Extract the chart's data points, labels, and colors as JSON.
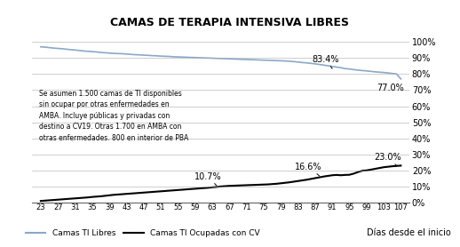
{
  "title": "CAMAS DE TERAPIA INTENSIVA LIBRES",
  "xlabel": "Días desde el inicio",
  "xticks": [
    23,
    27,
    31,
    35,
    39,
    43,
    47,
    51,
    55,
    59,
    63,
    67,
    71,
    75,
    79,
    83,
    87,
    91,
    95,
    99,
    103,
    107
  ],
  "ytick_labels_right": [
    "0%",
    "10%",
    "20%",
    "30%",
    "40%",
    "50%",
    "60%",
    "70%",
    "80%",
    "90%",
    "100%"
  ],
  "annotation_text": "Se asumen 1.500 camas de TI disponibles\nsin ocupar por otras enfermedades en\nAMBA. Incluye públicas y privadas con\ndestino a CV19. Otras 1.700 en AMBA con\notras enfermedades. 800 en interior de PBA",
  "legend_free": "Camas TI Libres",
  "legend_occ": "Camas TI Ocupadas con CV",
  "color_free": "#8aa8c8",
  "color_occ": "#000000",
  "background_color": "#ffffff",
  "days": [
    23,
    24,
    25,
    26,
    27,
    28,
    29,
    30,
    31,
    32,
    33,
    34,
    35,
    36,
    37,
    38,
    39,
    40,
    41,
    42,
    43,
    44,
    45,
    46,
    47,
    48,
    49,
    50,
    51,
    52,
    53,
    54,
    55,
    56,
    57,
    58,
    59,
    60,
    61,
    62,
    63,
    64,
    65,
    66,
    67,
    68,
    69,
    70,
    71,
    72,
    73,
    74,
    75,
    76,
    77,
    78,
    79,
    80,
    81,
    82,
    83,
    84,
    85,
    86,
    87,
    88,
    89,
    90,
    91,
    92,
    93,
    94,
    95,
    96,
    97,
    98,
    99,
    100,
    101,
    102,
    103,
    104,
    105,
    106,
    107
  ],
  "libres": [
    97,
    96.8,
    96.5,
    96.2,
    96.0,
    95.8,
    95.5,
    95.2,
    95.0,
    94.7,
    94.4,
    94.2,
    94.0,
    93.8,
    93.5,
    93.3,
    93.1,
    92.9,
    92.8,
    92.7,
    92.5,
    92.3,
    92.1,
    92.0,
    91.8,
    91.7,
    91.5,
    91.4,
    91.2,
    91.1,
    91.0,
    90.8,
    90.7,
    90.6,
    90.5,
    90.4,
    90.3,
    90.2,
    90.1,
    90.0,
    89.9,
    89.8,
    89.7,
    89.6,
    89.5,
    89.4,
    89.3,
    89.2,
    89.1,
    89.0,
    88.9,
    88.8,
    88.7,
    88.6,
    88.5,
    88.4,
    88.3,
    88.2,
    88.0,
    87.8,
    87.5,
    87.2,
    87.0,
    86.7,
    86.4,
    86.0,
    85.6,
    85.2,
    84.8,
    84.4,
    84.0,
    83.4,
    83.2,
    82.8,
    82.5,
    82.2,
    82.0,
    81.7,
    81.4,
    81.2,
    81.0,
    80.7,
    80.4,
    80.1,
    77.0
  ],
  "ocupadas": [
    1.0,
    1.2,
    1.4,
    1.6,
    1.8,
    2.0,
    2.2,
    2.4,
    2.6,
    2.8,
    3.0,
    3.2,
    3.5,
    3.7,
    3.9,
    4.2,
    4.5,
    4.8,
    5.0,
    5.2,
    5.4,
    5.6,
    5.8,
    6.0,
    6.2,
    6.4,
    6.6,
    6.8,
    7.0,
    7.2,
    7.4,
    7.6,
    7.8,
    8.0,
    8.2,
    8.4,
    8.6,
    8.8,
    9.0,
    9.2,
    9.5,
    9.7,
    10.0,
    10.2,
    10.4,
    10.5,
    10.6,
    10.7,
    10.8,
    10.9,
    11.0,
    11.1,
    11.2,
    11.3,
    11.5,
    11.7,
    12.0,
    12.3,
    12.6,
    13.0,
    13.4,
    13.8,
    14.2,
    14.7,
    15.2,
    15.7,
    16.2,
    16.6,
    17.0,
    17.2,
    17.0,
    17.2,
    17.3,
    18.0,
    19.0,
    19.8,
    20.0,
    20.5,
    21.0,
    21.5,
    22.0,
    22.3,
    22.6,
    22.8,
    23.0
  ]
}
